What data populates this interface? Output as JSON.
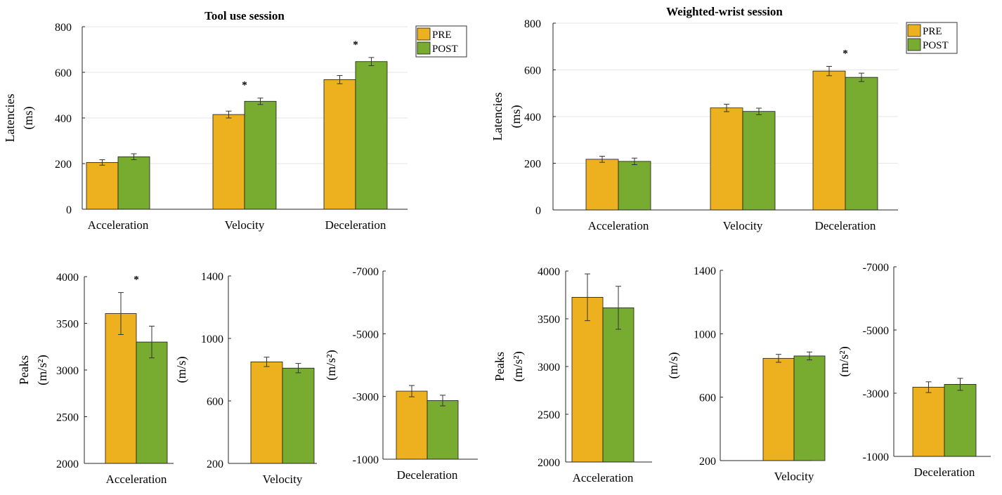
{
  "figure": {
    "legend_labels": [
      "PRE",
      "POST"
    ],
    "significance_marker": "*"
  },
  "colors": {
    "pre": "#EDB120",
    "post": "#77AC30",
    "grid": "#e6e6e6",
    "axis": "#262626",
    "error": "#333333"
  },
  "chart_data": [
    {
      "id": "tool-latencies",
      "type": "bar",
      "title": "Tool use session",
      "ylabel": [
        "Latencies",
        "(ms)"
      ],
      "categories": [
        "Acceleration",
        "Velocity",
        "Deceleration"
      ],
      "series": [
        {
          "name": "PRE",
          "values": [
            205,
            415,
            568
          ],
          "errors": [
            12,
            15,
            18
          ]
        },
        {
          "name": "POST",
          "values": [
            230,
            473,
            647
          ],
          "errors": [
            13,
            14,
            18
          ]
        }
      ],
      "ylim": [
        0,
        800
      ],
      "yticks": [
        0,
        200,
        400,
        600,
        800
      ],
      "grid": true,
      "legend": "top-right",
      "significant": [
        false,
        true,
        true
      ]
    },
    {
      "id": "wrist-latencies",
      "type": "bar",
      "title": "Weighted-wrist session",
      "ylabel": [
        "Latencies",
        "(ms)"
      ],
      "categories": [
        "Acceleration",
        "Velocity",
        "Deceleration"
      ],
      "series": [
        {
          "name": "PRE",
          "values": [
            217,
            437,
            595
          ],
          "errors": [
            13,
            16,
            20
          ]
        },
        {
          "name": "POST",
          "values": [
            208,
            422,
            568
          ],
          "errors": [
            14,
            14,
            18
          ]
        }
      ],
      "ylim": [
        0,
        800
      ],
      "yticks": [
        0,
        200,
        400,
        600,
        800
      ],
      "grid": true,
      "legend": "top-right",
      "significant": [
        false,
        false,
        true
      ]
    },
    {
      "id": "tool-peak-acc",
      "type": "bar",
      "ylabel": [
        "Peaks",
        "(m/s²)"
      ],
      "categories": [
        "Acceleration"
      ],
      "series": [
        {
          "name": "PRE",
          "values": [
            3605
          ],
          "errors": [
            225
          ]
        },
        {
          "name": "POST",
          "values": [
            3300
          ],
          "errors": [
            170
          ]
        }
      ],
      "ylim": [
        2000,
        4000
      ],
      "yticks": [
        2000,
        2500,
        3000,
        3500,
        4000
      ],
      "significant": [
        true
      ]
    },
    {
      "id": "tool-peak-vel",
      "type": "bar",
      "ylabel": [
        "(m/s)"
      ],
      "categories": [
        "Velocity"
      ],
      "series": [
        {
          "name": "PRE",
          "values": [
            850
          ],
          "errors": [
            30
          ]
        },
        {
          "name": "POST",
          "values": [
            810
          ],
          "errors": [
            30
          ]
        }
      ],
      "ylim": [
        200,
        1400
      ],
      "yticks": [
        200,
        600,
        1000,
        1400
      ],
      "significant": [
        false
      ]
    },
    {
      "id": "tool-peak-dec",
      "type": "bar",
      "ylabel": [
        "(m/s²)"
      ],
      "categories": [
        "Deceleration"
      ],
      "series": [
        {
          "name": "PRE",
          "values": [
            -3170
          ],
          "errors": [
            180
          ]
        },
        {
          "name": "POST",
          "values": [
            -2870
          ],
          "errors": [
            170
          ]
        }
      ],
      "ylim": [
        -1000,
        -7000
      ],
      "yticks": [
        -1000,
        -3000,
        -5000,
        -7000
      ],
      "significant": [
        false
      ]
    },
    {
      "id": "wrist-peak-acc",
      "type": "bar",
      "ylabel": [
        "Peaks",
        "(m/s²)"
      ],
      "categories": [
        "Acceleration"
      ],
      "series": [
        {
          "name": "PRE",
          "values": [
            3725
          ],
          "errors": [
            245
          ]
        },
        {
          "name": "POST",
          "values": [
            3615
          ],
          "errors": [
            225
          ]
        }
      ],
      "ylim": [
        2000,
        4000
      ],
      "yticks": [
        2000,
        2500,
        3000,
        3500,
        4000
      ],
      "significant": [
        false
      ]
    },
    {
      "id": "wrist-peak-vel",
      "type": "bar",
      "ylabel": [
        "(m/s)"
      ],
      "categories": [
        "Velocity"
      ],
      "series": [
        {
          "name": "PRE",
          "values": [
            845
          ],
          "errors": [
            25
          ]
        },
        {
          "name": "POST",
          "values": [
            860
          ],
          "errors": [
            25
          ]
        }
      ],
      "ylim": [
        200,
        1400
      ],
      "yticks": [
        200,
        600,
        1000,
        1400
      ],
      "significant": [
        false
      ]
    },
    {
      "id": "wrist-peak-dec",
      "type": "bar",
      "ylabel": [
        "(m/s²)"
      ],
      "categories": [
        "Deceleration"
      ],
      "series": [
        {
          "name": "PRE",
          "values": [
            -3190
          ],
          "errors": [
            170
          ]
        },
        {
          "name": "POST",
          "values": [
            -3280
          ],
          "errors": [
            190
          ]
        }
      ],
      "ylim": [
        -1000,
        -7000
      ],
      "yticks": [
        -1000,
        -3000,
        -5000,
        -7000
      ],
      "significant": [
        false
      ]
    }
  ]
}
